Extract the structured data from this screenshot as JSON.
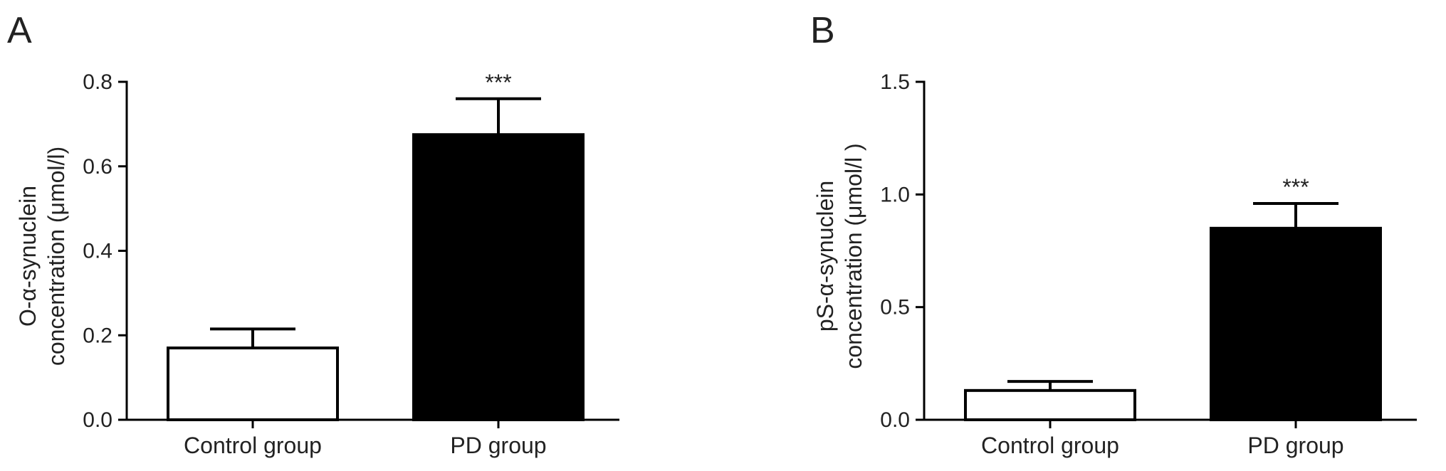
{
  "chart_data": [
    {
      "panel": "A",
      "type": "bar",
      "categories": [
        "Control group",
        "PD group"
      ],
      "values": [
        0.17,
        0.675
      ],
      "errors": [
        0.045,
        0.085
      ],
      "bar_colors": [
        "#ffffff",
        "#000000"
      ],
      "significance": [
        "",
        "***"
      ],
      "ylabel_lines": [
        "O-α-synuclein",
        "concentration (μmol/l)"
      ],
      "ylim": [
        0,
        0.8
      ],
      "yticks": [
        0.0,
        0.2,
        0.4,
        0.6,
        0.8
      ],
      "ytick_labels": [
        "0.0",
        "0.2",
        "0.4",
        "0.6",
        "0.8"
      ],
      "grid": false
    },
    {
      "panel": "B",
      "type": "bar",
      "categories": [
        "Control group",
        "PD group"
      ],
      "values": [
        0.13,
        0.85
      ],
      "errors": [
        0.04,
        0.11
      ],
      "bar_colors": [
        "#ffffff",
        "#000000"
      ],
      "significance": [
        "",
        "***"
      ],
      "ylabel_lines": [
        "pS-α-synuclein",
        "concentration (μmol/l )"
      ],
      "ylim": [
        0,
        1.5
      ],
      "yticks": [
        0.0,
        0.5,
        1.0,
        1.5
      ],
      "ytick_labels": [
        "0.0",
        "0.5",
        "1.0",
        "1.5"
      ],
      "grid": false
    }
  ]
}
